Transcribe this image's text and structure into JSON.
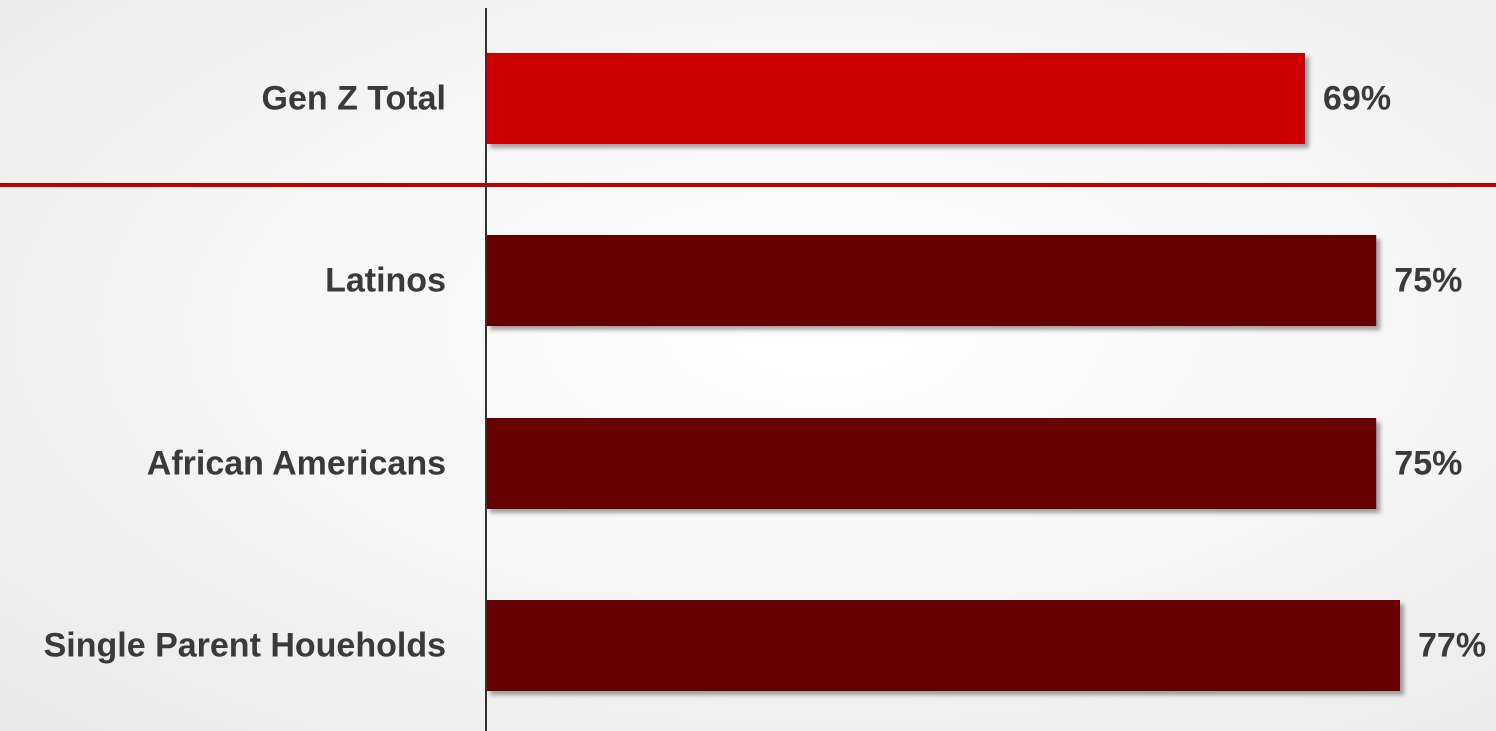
{
  "chart_data": {
    "type": "bar",
    "orientation": "horizontal",
    "categories": [
      "Gen Z Total",
      "Latinos",
      "African Americans",
      "Single Parent Houeholds"
    ],
    "values": [
      69,
      75,
      75,
      77
    ],
    "value_labels": [
      "69%",
      "75%",
      "75%",
      "77%"
    ],
    "unit": "%",
    "xlim": [
      0,
      100
    ],
    "grid": false,
    "legend": "none",
    "colors": {
      "highlight": "#cc0000",
      "bar": "#660000",
      "separator": "#c00000",
      "axis": "#333333",
      "text": "#3a3a3a"
    },
    "highlight_index": 0
  }
}
